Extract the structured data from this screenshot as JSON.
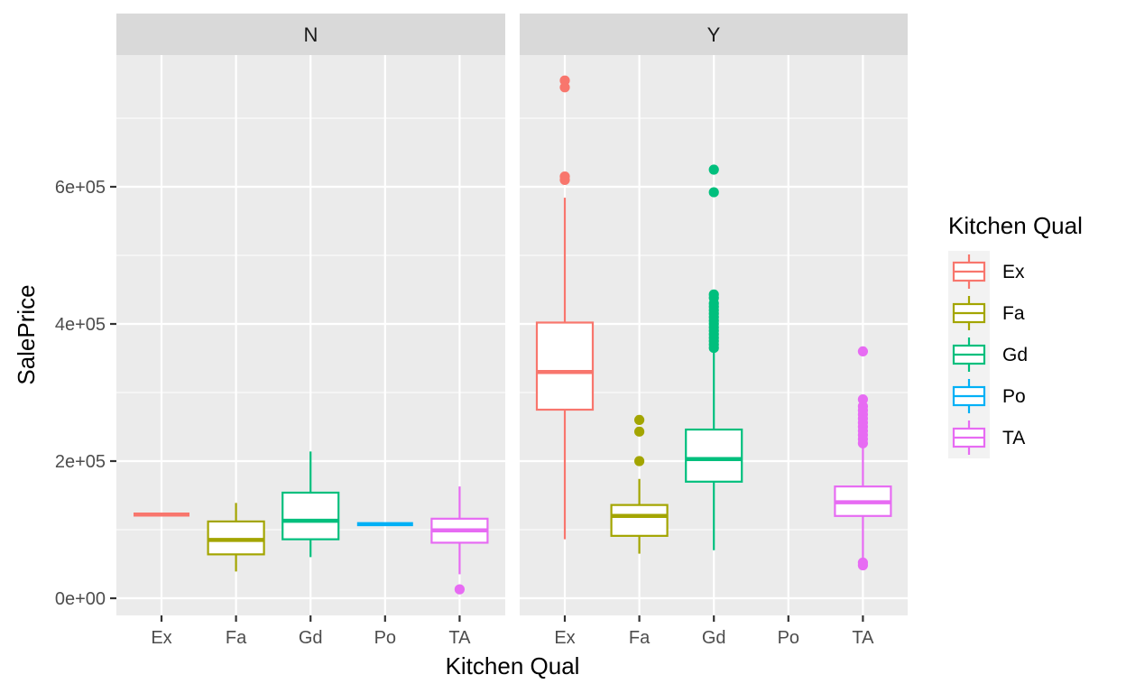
{
  "chart_data": {
    "type": "boxplot",
    "xlabel": "Kitchen Qual",
    "ylabel": "SalePrice",
    "ylim": [
      -30000,
      800000
    ],
    "y_ticks": [
      0,
      200000,
      400000,
      600000
    ],
    "y_tick_labels": [
      "0e+00",
      "2e+05",
      "4e+05",
      "6e+05"
    ],
    "categories": [
      "Ex",
      "Fa",
      "Gd",
      "Po",
      "TA"
    ],
    "grid": true,
    "legend": {
      "title": "Kitchen Qual",
      "position": "right",
      "entries": [
        "Ex",
        "Fa",
        "Gd",
        "Po",
        "TA"
      ]
    },
    "colors": {
      "Ex": "#F8766D",
      "Fa": "#A3A500",
      "Gd": "#00BF7D",
      "Po": "#00B0F6",
      "TA": "#E76BF3"
    },
    "facets": [
      {
        "label": "N",
        "boxes": [
          {
            "category": "Ex",
            "whisker_low": 122000,
            "q1": 122000,
            "median": 122000,
            "q3": 122000,
            "whisker_high": 122000,
            "outliers": []
          },
          {
            "category": "Fa",
            "whisker_low": 39000,
            "q1": 64000,
            "median": 85000,
            "q3": 112000,
            "whisker_high": 139000,
            "outliers": []
          },
          {
            "category": "Gd",
            "whisker_low": 60000,
            "q1": 86000,
            "median": 113000,
            "q3": 154000,
            "whisker_high": 214000,
            "outliers": []
          },
          {
            "category": "Po",
            "whisker_low": 108000,
            "q1": 108000,
            "median": 108000,
            "q3": 108000,
            "whisker_high": 108000,
            "outliers": []
          },
          {
            "category": "TA",
            "whisker_low": 35000,
            "q1": 81000,
            "median": 99000,
            "q3": 116000,
            "whisker_high": 163000,
            "outliers": [
              13000
            ]
          }
        ]
      },
      {
        "label": "Y",
        "boxes": [
          {
            "category": "Ex",
            "whisker_low": 86000,
            "q1": 275000,
            "median": 330000,
            "q3": 402000,
            "whisker_high": 584000,
            "outliers": [
              610000,
              615000,
              745000,
              755000
            ]
          },
          {
            "category": "Fa",
            "whisker_low": 65000,
            "q1": 91000,
            "median": 120000,
            "q3": 136000,
            "whisker_high": 174000,
            "outliers": [
              200000,
              243000,
              260000
            ]
          },
          {
            "category": "Gd",
            "whisker_low": 70000,
            "q1": 170000,
            "median": 203000,
            "q3": 246000,
            "whisker_high": 360000,
            "outliers": [
              365000,
              370000,
              375000,
              380000,
              385000,
              390000,
              395000,
              400000,
              405000,
              410000,
              415000,
              420000,
              425000,
              430000,
              438000,
              443000,
              592000,
              625000
            ]
          },
          {
            "category": "TA",
            "whisker_low": 55000,
            "q1": 120000,
            "median": 140000,
            "q3": 163000,
            "whisker_high": 222000,
            "outliers": [
              48000,
              52000,
              226000,
              232000,
              238000,
              244000,
              250000,
              256000,
              262000,
              268000,
              274000,
              280000,
              290000,
              360000
            ]
          }
        ]
      }
    ]
  }
}
